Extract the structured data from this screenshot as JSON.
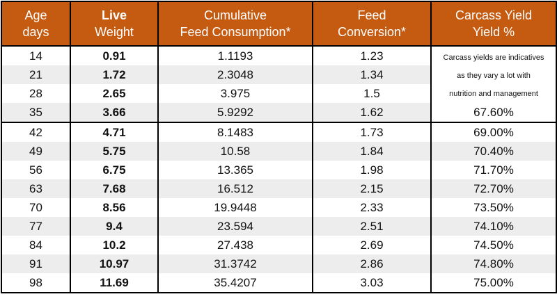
{
  "headers": {
    "age_line1": "Age",
    "age_line2": "days",
    "live_line1": "Live",
    "live_line2": "Weight",
    "feed_line1": "Cumulative",
    "feed_line2": "Feed Consumption*",
    "conv_line1": "Feed",
    "conv_line2": "Conversion*",
    "yield_line1": "Carcass Yield",
    "yield_line2": "Yield %"
  },
  "note": {
    "line1": "Carcass yields are indicatives",
    "line2": "as they vary a lot with",
    "line3": "nutrition and management"
  },
  "rows": [
    {
      "age": "14",
      "weight": "0.91",
      "feed": "1.1193",
      "conversion": "1.23",
      "yield": ""
    },
    {
      "age": "21",
      "weight": "1.72",
      "feed": "2.3048",
      "conversion": "1.34",
      "yield": ""
    },
    {
      "age": "28",
      "weight": "2.65",
      "feed": "3.975",
      "conversion": "1.5",
      "yield": ""
    },
    {
      "age": "35",
      "weight": "3.66",
      "feed": "5.9292",
      "conversion": "1.62",
      "yield": "67.60%"
    },
    {
      "age": "42",
      "weight": "4.71",
      "feed": "8.1483",
      "conversion": "1.73",
      "yield": "69.00%"
    },
    {
      "age": "49",
      "weight": "5.75",
      "feed": "10.58",
      "conversion": "1.84",
      "yield": "70.40%"
    },
    {
      "age": "56",
      "weight": "6.75",
      "feed": "13.365",
      "conversion": "1.98",
      "yield": "71.70%"
    },
    {
      "age": "63",
      "weight": "7.68",
      "feed": "16.512",
      "conversion": "2.15",
      "yield": "72.70%"
    },
    {
      "age": "70",
      "weight": "8.56",
      "feed": "19.9448",
      "conversion": "2.33",
      "yield": "73.50%"
    },
    {
      "age": "77",
      "weight": "9.4",
      "feed": "23.594",
      "conversion": "2.51",
      "yield": "74.10%"
    },
    {
      "age": "84",
      "weight": "10.2",
      "feed": "27.438",
      "conversion": "2.69",
      "yield": "74.50%"
    },
    {
      "age": "91",
      "weight": "10.97",
      "feed": "31.3742",
      "conversion": "2.86",
      "yield": "74.80%"
    },
    {
      "age": "98",
      "weight": "11.69",
      "feed": "35.4207",
      "conversion": "3.03",
      "yield": "75.00%"
    }
  ],
  "colors": {
    "header_bg": "#c55a11",
    "header_text": "#ffffff",
    "alt_row_bg": "#ededed",
    "border": "#000000"
  }
}
